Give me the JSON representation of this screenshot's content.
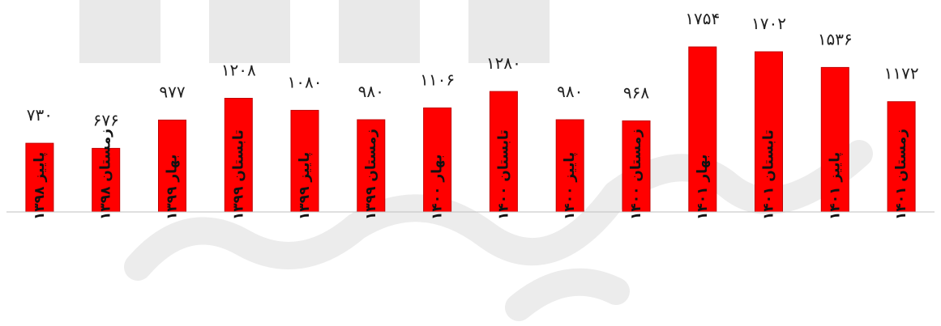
{
  "chart_data": {
    "type": "bar",
    "categories": [
      "پاییز ۱۳۹۸",
      "زمستان ۱۳۹۸",
      "بهار ۱۳۹۹",
      "تابستان ۱۳۹۹",
      "پاییز ۱۳۹۹",
      "زمستان ۱۳۹۹",
      "بهار ۱۴۰۰",
      "تابستان ۱۴۰۰",
      "پاییز ۱۴۰۰",
      "زمستان ۱۴۰۰",
      "بهار ۱۴۰۱",
      "تابستان ۱۴۰۱",
      "پاییز ۱۴۰۱",
      "زمستان ۱۴۰۱"
    ],
    "values": [
      730,
      676,
      977,
      1208,
      1080,
      980,
      1106,
      1280,
      980,
      968,
      1754,
      1702,
      1536,
      1172
    ],
    "value_labels": [
      "۷۳۰",
      "۶۷۶",
      "۹۷۷",
      "۱۲۰۸",
      "۱۰۸۰",
      "۹۸۰",
      "۱۱۰۶",
      "۱۲۸۰",
      "۹۸۰",
      "۹۶۸",
      "۱۷۵۴",
      "۱۷۰۲",
      "۱۵۳۶",
      "۱۱۷۲"
    ],
    "title": "",
    "xlabel": "",
    "ylabel": "",
    "ylim": [
      0,
      1754
    ],
    "grid": false,
    "legend": "none",
    "bar_color": "#ff0000"
  }
}
